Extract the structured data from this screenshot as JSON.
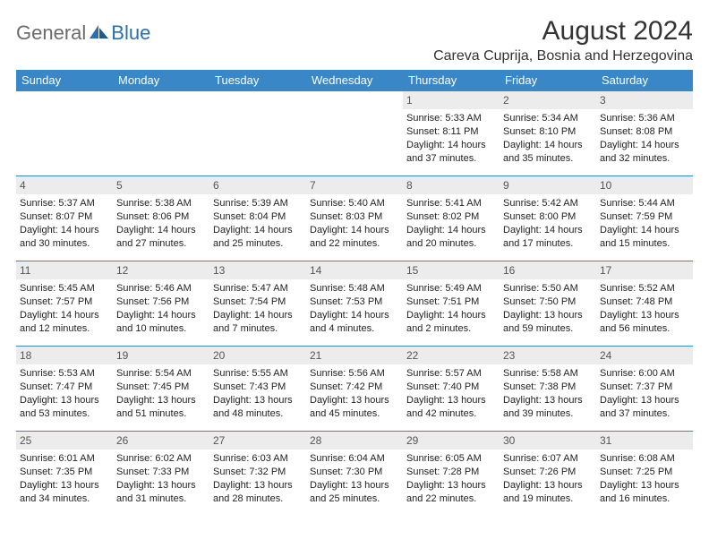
{
  "logo": {
    "text1": "General",
    "text2": "Blue"
  },
  "title": "August 2024",
  "location": "Careva Cuprija, Bosnia and Herzegovina",
  "colors": {
    "header_bg": "#3a87c7",
    "header_text": "#ffffff",
    "daynum_bg": "#ececec",
    "row_divider": "#3a87c7",
    "text": "#222222",
    "logo_gray": "#6b6b6b",
    "logo_blue": "#2b6fb0"
  },
  "weekdays": [
    "Sunday",
    "Monday",
    "Tuesday",
    "Wednesday",
    "Thursday",
    "Friday",
    "Saturday"
  ],
  "weeks": [
    [
      null,
      null,
      null,
      null,
      {
        "n": "1",
        "sr": "5:33 AM",
        "ss": "8:11 PM",
        "dl": "14 hours and 37 minutes."
      },
      {
        "n": "2",
        "sr": "5:34 AM",
        "ss": "8:10 PM",
        "dl": "14 hours and 35 minutes."
      },
      {
        "n": "3",
        "sr": "5:36 AM",
        "ss": "8:08 PM",
        "dl": "14 hours and 32 minutes."
      }
    ],
    [
      {
        "n": "4",
        "sr": "5:37 AM",
        "ss": "8:07 PM",
        "dl": "14 hours and 30 minutes."
      },
      {
        "n": "5",
        "sr": "5:38 AM",
        "ss": "8:06 PM",
        "dl": "14 hours and 27 minutes."
      },
      {
        "n": "6",
        "sr": "5:39 AM",
        "ss": "8:04 PM",
        "dl": "14 hours and 25 minutes."
      },
      {
        "n": "7",
        "sr": "5:40 AM",
        "ss": "8:03 PM",
        "dl": "14 hours and 22 minutes."
      },
      {
        "n": "8",
        "sr": "5:41 AM",
        "ss": "8:02 PM",
        "dl": "14 hours and 20 minutes."
      },
      {
        "n": "9",
        "sr": "5:42 AM",
        "ss": "8:00 PM",
        "dl": "14 hours and 17 minutes."
      },
      {
        "n": "10",
        "sr": "5:44 AM",
        "ss": "7:59 PM",
        "dl": "14 hours and 15 minutes."
      }
    ],
    [
      {
        "n": "11",
        "sr": "5:45 AM",
        "ss": "7:57 PM",
        "dl": "14 hours and 12 minutes."
      },
      {
        "n": "12",
        "sr": "5:46 AM",
        "ss": "7:56 PM",
        "dl": "14 hours and 10 minutes."
      },
      {
        "n": "13",
        "sr": "5:47 AM",
        "ss": "7:54 PM",
        "dl": "14 hours and 7 minutes."
      },
      {
        "n": "14",
        "sr": "5:48 AM",
        "ss": "7:53 PM",
        "dl": "14 hours and 4 minutes."
      },
      {
        "n": "15",
        "sr": "5:49 AM",
        "ss": "7:51 PM",
        "dl": "14 hours and 2 minutes."
      },
      {
        "n": "16",
        "sr": "5:50 AM",
        "ss": "7:50 PM",
        "dl": "13 hours and 59 minutes."
      },
      {
        "n": "17",
        "sr": "5:52 AM",
        "ss": "7:48 PM",
        "dl": "13 hours and 56 minutes."
      }
    ],
    [
      {
        "n": "18",
        "sr": "5:53 AM",
        "ss": "7:47 PM",
        "dl": "13 hours and 53 minutes."
      },
      {
        "n": "19",
        "sr": "5:54 AM",
        "ss": "7:45 PM",
        "dl": "13 hours and 51 minutes."
      },
      {
        "n": "20",
        "sr": "5:55 AM",
        "ss": "7:43 PM",
        "dl": "13 hours and 48 minutes."
      },
      {
        "n": "21",
        "sr": "5:56 AM",
        "ss": "7:42 PM",
        "dl": "13 hours and 45 minutes."
      },
      {
        "n": "22",
        "sr": "5:57 AM",
        "ss": "7:40 PM",
        "dl": "13 hours and 42 minutes."
      },
      {
        "n": "23",
        "sr": "5:58 AM",
        "ss": "7:38 PM",
        "dl": "13 hours and 39 minutes."
      },
      {
        "n": "24",
        "sr": "6:00 AM",
        "ss": "7:37 PM",
        "dl": "13 hours and 37 minutes."
      }
    ],
    [
      {
        "n": "25",
        "sr": "6:01 AM",
        "ss": "7:35 PM",
        "dl": "13 hours and 34 minutes."
      },
      {
        "n": "26",
        "sr": "6:02 AM",
        "ss": "7:33 PM",
        "dl": "13 hours and 31 minutes."
      },
      {
        "n": "27",
        "sr": "6:03 AM",
        "ss": "7:32 PM",
        "dl": "13 hours and 28 minutes."
      },
      {
        "n": "28",
        "sr": "6:04 AM",
        "ss": "7:30 PM",
        "dl": "13 hours and 25 minutes."
      },
      {
        "n": "29",
        "sr": "6:05 AM",
        "ss": "7:28 PM",
        "dl": "13 hours and 22 minutes."
      },
      {
        "n": "30",
        "sr": "6:07 AM",
        "ss": "7:26 PM",
        "dl": "13 hours and 19 minutes."
      },
      {
        "n": "31",
        "sr": "6:08 AM",
        "ss": "7:25 PM",
        "dl": "13 hours and 16 minutes."
      }
    ]
  ],
  "labels": {
    "sunrise": "Sunrise:",
    "sunset": "Sunset:",
    "daylight": "Daylight:"
  }
}
